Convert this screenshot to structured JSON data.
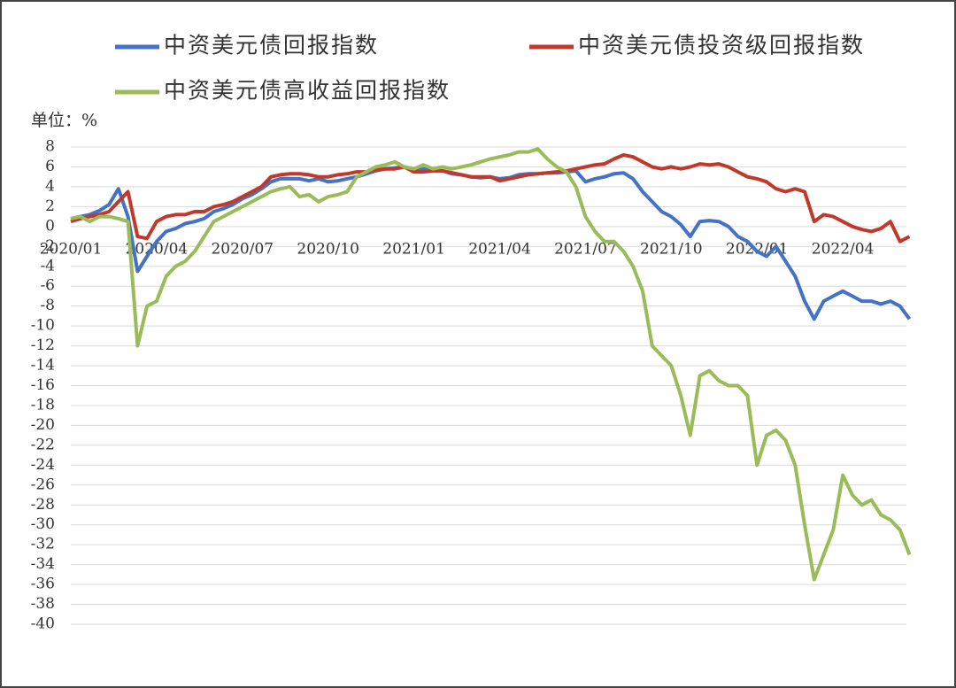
{
  "chart_data": {
    "type": "line",
    "y_label": "单位：%",
    "categories": [
      "2020/01",
      null,
      null,
      null,
      null,
      null,
      null,
      null,
      null,
      "2020/04",
      null,
      null,
      null,
      null,
      null,
      null,
      null,
      null,
      "2020/07",
      null,
      null,
      null,
      null,
      null,
      null,
      null,
      null,
      "2020/10",
      null,
      null,
      null,
      null,
      null,
      null,
      null,
      null,
      "2021/01",
      null,
      null,
      null,
      null,
      null,
      null,
      null,
      null,
      "2021/04",
      null,
      null,
      null,
      null,
      null,
      null,
      null,
      null,
      "2021/07",
      null,
      null,
      null,
      null,
      null,
      null,
      null,
      null,
      "2021/10",
      null,
      null,
      null,
      null,
      null,
      null,
      null,
      null,
      "2022/01",
      null,
      null,
      null,
      null,
      null,
      null,
      null,
      null,
      "2022/04",
      null,
      null,
      null,
      null,
      null,
      null,
      null
    ],
    "series": [
      {
        "name": "中资美元债回报指数",
        "color": "#4472c4",
        "values": [
          0.8,
          1.0,
          1.2,
          1.6,
          2.2,
          3.8,
          1.0,
          -4.5,
          -3.0,
          -1.5,
          -0.5,
          -0.2,
          0.3,
          0.5,
          0.8,
          1.5,
          1.8,
          2.2,
          2.8,
          3.2,
          3.8,
          4.5,
          4.8,
          4.8,
          4.8,
          4.6,
          4.8,
          4.5,
          4.6,
          4.8,
          5.0,
          5.3,
          5.6,
          5.8,
          5.9,
          6.0,
          5.5,
          5.8,
          5.6,
          5.6,
          5.3,
          5.2,
          5.0,
          4.9,
          5.0,
          4.8,
          4.9,
          5.2,
          5.3,
          5.3,
          5.4,
          5.4,
          5.5,
          5.6,
          4.5,
          4.8,
          5.0,
          5.3,
          5.4,
          4.8,
          3.5,
          2.5,
          1.5,
          1.0,
          0.2,
          -1.0,
          0.5,
          0.6,
          0.5,
          0.0,
          -1.0,
          -1.5,
          -2.5,
          -3.0,
          -2.0,
          -3.5,
          -5.0,
          -7.5,
          -9.3,
          -7.5,
          -7.0,
          -6.5,
          -7.0,
          -7.5,
          -7.5,
          -7.8,
          -7.5,
          -8.0,
          -9.3
        ]
      },
      {
        "name": "中资美元债投资级回报指数",
        "color": "#c0392b",
        "values": [
          0.5,
          0.8,
          1.0,
          1.2,
          1.5,
          2.5,
          3.5,
          -1.0,
          -1.2,
          0.5,
          1.0,
          1.2,
          1.2,
          1.5,
          1.5,
          2.0,
          2.2,
          2.5,
          3.0,
          3.5,
          4.0,
          5.0,
          5.2,
          5.3,
          5.3,
          5.2,
          5.0,
          5.0,
          5.2,
          5.3,
          5.5,
          5.5,
          5.7,
          5.8,
          5.8,
          6.0,
          5.5,
          5.5,
          5.6,
          5.6,
          5.4,
          5.2,
          5.0,
          5.0,
          5.0,
          4.6,
          4.8,
          5.0,
          5.2,
          5.3,
          5.4,
          5.5,
          5.6,
          5.8,
          6.0,
          6.2,
          6.3,
          6.8,
          7.2,
          7.0,
          6.5,
          6.0,
          5.8,
          6.0,
          5.8,
          6.0,
          6.3,
          6.2,
          6.3,
          6.0,
          5.5,
          5.0,
          4.8,
          4.5,
          3.8,
          3.5,
          3.8,
          3.5,
          0.5,
          1.2,
          1.0,
          0.5,
          0.0,
          -0.3,
          -0.5,
          -0.2,
          0.5,
          -1.5,
          -1.0
        ]
      },
      {
        "name": "中资美元债高收益回报指数",
        "color": "#9bbb59",
        "values": [
          0.8,
          1.0,
          0.5,
          1.0,
          1.0,
          0.8,
          0.5,
          -12.0,
          -8.0,
          -7.5,
          -5.0,
          -4.0,
          -3.5,
          -2.5,
          -1.0,
          0.5,
          1.0,
          1.5,
          2.0,
          2.5,
          3.0,
          3.5,
          3.8,
          4.0,
          3.0,
          3.2,
          2.5,
          3.0,
          3.2,
          3.5,
          5.0,
          5.5,
          6.0,
          6.2,
          6.5,
          6.0,
          5.8,
          6.2,
          5.8,
          6.0,
          5.8,
          6.0,
          6.2,
          6.5,
          6.8,
          7.0,
          7.2,
          7.5,
          7.5,
          7.8,
          6.8,
          6.0,
          5.5,
          4.0,
          1.0,
          -0.5,
          -1.5,
          -1.5,
          -2.5,
          -4.0,
          -6.5,
          -12.0,
          -13.0,
          -14.0,
          -17.0,
          -21.0,
          -15.0,
          -14.5,
          -15.5,
          -16.0,
          -16.0,
          -17.0,
          -24.0,
          -21.0,
          -20.5,
          -21.5,
          -24.0,
          -30.0,
          -35.5,
          -33.0,
          -30.5,
          -25.0,
          -27.0,
          -28.0,
          -27.5,
          -29.0,
          -29.5,
          -30.5,
          -33.0
        ]
      }
    ],
    "ylim": [
      -40,
      8
    ],
    "yticks": [
      8,
      6,
      4,
      2,
      0,
      -2,
      -4,
      -6,
      -8,
      -10,
      -12,
      -14,
      -16,
      -18,
      -20,
      -22,
      -24,
      -26,
      -28,
      -30,
      -32,
      -34,
      -36,
      -38,
      -40
    ],
    "grid": true
  }
}
